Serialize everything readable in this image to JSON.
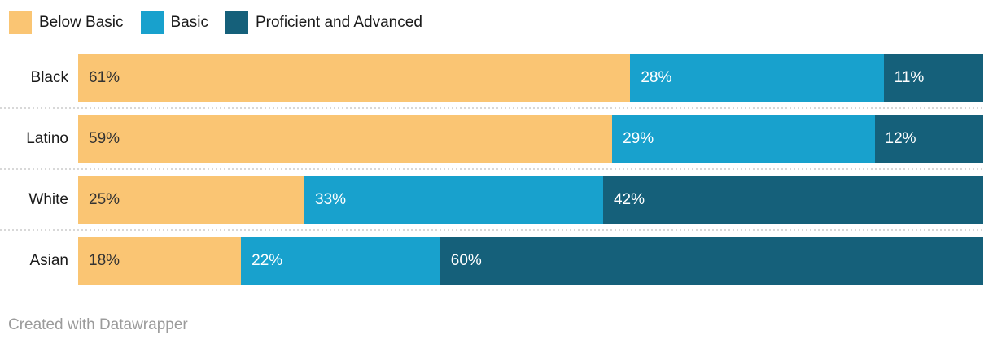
{
  "chart_data": {
    "type": "bar",
    "variant": "stacked-horizontal",
    "categories": [
      "Black",
      "Latino",
      "White",
      "Asian"
    ],
    "series": [
      {
        "name": "Below Basic",
        "color": "#FAC573",
        "label_color": "#333333",
        "values": [
          61,
          59,
          25,
          18
        ]
      },
      {
        "name": "Basic",
        "color": "#18A1CD",
        "label_color": "#FFFFFF",
        "values": [
          28,
          29,
          33,
          22
        ]
      },
      {
        "name": "Proficient and Advanced",
        "color": "#15607A",
        "label_color": "#FFFFFF",
        "values": [
          11,
          12,
          42,
          60
        ]
      }
    ],
    "value_suffix": "%",
    "xlim": [
      0,
      100
    ],
    "grid": "off",
    "legend_position": "top",
    "separator_color": "#D8D8D8",
    "label_color": "#1A1A1A"
  },
  "footer": {
    "text": "Created with Datawrapper",
    "color": "#9B9B9B"
  }
}
